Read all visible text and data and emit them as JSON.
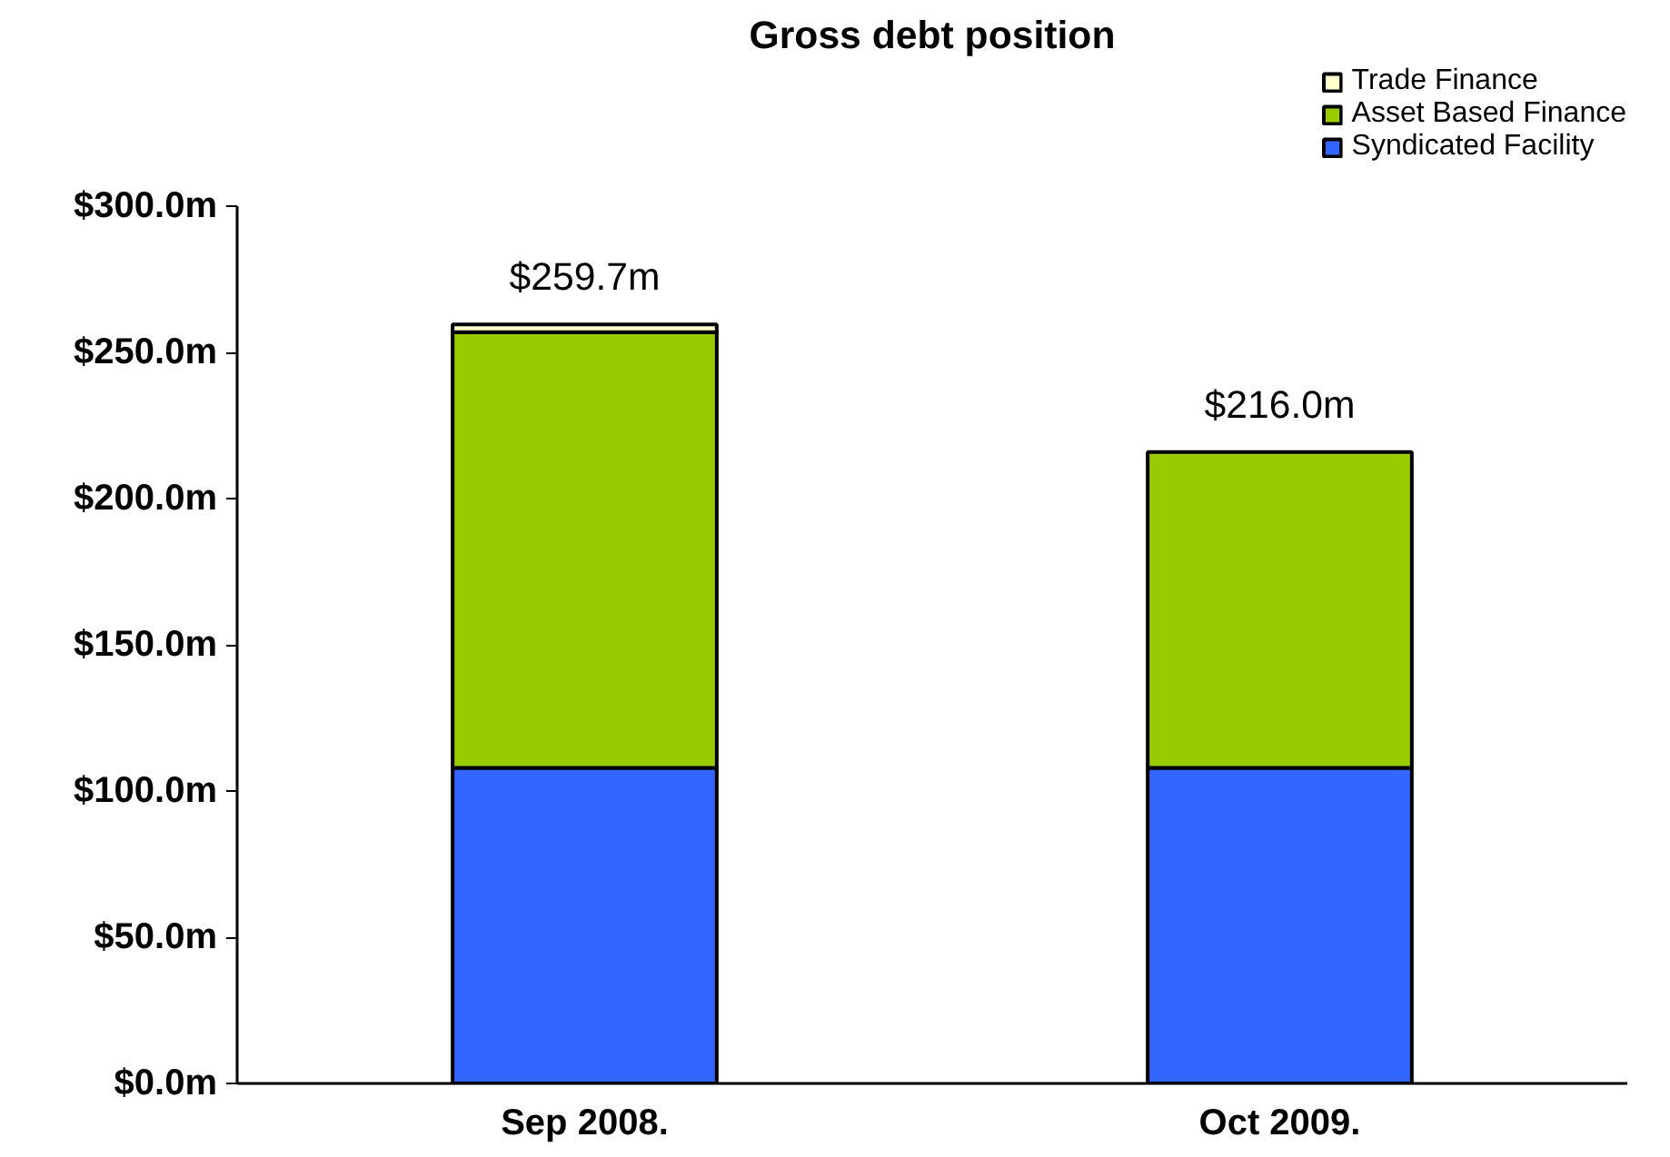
{
  "chart_data": {
    "type": "bar",
    "title": "Gross debt position",
    "stacked": true,
    "categories": [
      "Sep 2008.",
      "Oct 2009."
    ],
    "series": [
      {
        "name": "Syndicated Facility",
        "color": "#3366ff",
        "values": [
          108,
          108
        ]
      },
      {
        "name": "Asset Based Finance",
        "color": "#99cc00",
        "values": [
          149,
          108
        ]
      },
      {
        "name": "Trade Finance",
        "color": "#ffffcc",
        "values": [
          2.7,
          null
        ]
      }
    ],
    "totals": [
      "$259.7m",
      "$216.0m"
    ],
    "ylim": [
      0,
      300
    ],
    "yticks": [
      {
        "value": 0,
        "label": "$0.0m"
      },
      {
        "value": 50,
        "label": "$50.0m"
      },
      {
        "value": 100,
        "label": "$100.0m"
      },
      {
        "value": 150,
        "label": "$150.0m"
      },
      {
        "value": 200,
        "label": "$200.0m"
      },
      {
        "value": 250,
        "label": "$250.0m"
      },
      {
        "value": 300,
        "label": "$300.0m"
      }
    ],
    "grid": false,
    "legend": "top right"
  }
}
